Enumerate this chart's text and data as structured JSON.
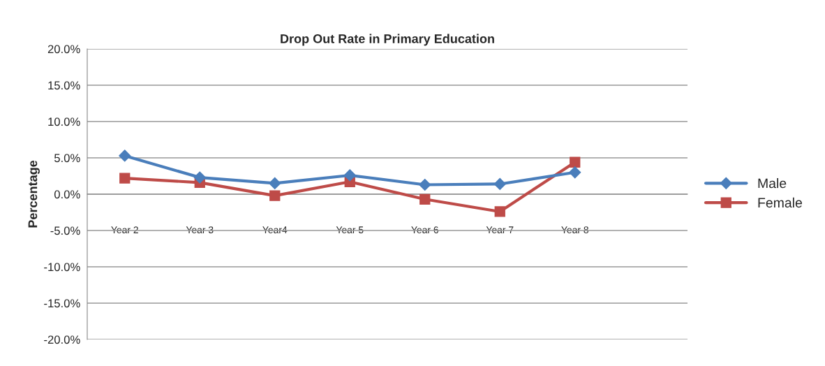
{
  "chart_data": {
    "type": "line",
    "title": "Drop Out Rate in Primary Education",
    "ylabel": "Percentage",
    "categories": [
      "Year 2",
      "Year 3",
      "Year4",
      "Year 5",
      "Year 6",
      "Year 7",
      "Year 8",
      null
    ],
    "series": [
      {
        "name": "Male",
        "color": "#4a7ebb",
        "marker": "diamond",
        "values": [
          5.3,
          2.3,
          1.5,
          2.6,
          1.3,
          1.4,
          3.0,
          null
        ]
      },
      {
        "name": "Female",
        "color": "#be4b48",
        "marker": "square",
        "values": [
          2.2,
          1.6,
          -0.2,
          1.7,
          -0.7,
          -2.4,
          4.4,
          null
        ]
      }
    ],
    "ylim": [
      -20,
      20
    ],
    "yticks": [
      {
        "value": -20,
        "label": "-20.0%"
      },
      {
        "value": -15,
        "label": "-15.0%"
      },
      {
        "value": -10,
        "label": "-10.0%"
      },
      {
        "value": -5,
        "label": "-5.0%"
      },
      {
        "value": 0,
        "label": "0.0%"
      },
      {
        "value": 5,
        "label": "5.0%"
      },
      {
        "value": 10,
        "label": "10.0%"
      },
      {
        "value": 15,
        "label": "15.0%"
      },
      {
        "value": 20,
        "label": "20.0%"
      }
    ],
    "grid": "y",
    "legend": "right"
  }
}
